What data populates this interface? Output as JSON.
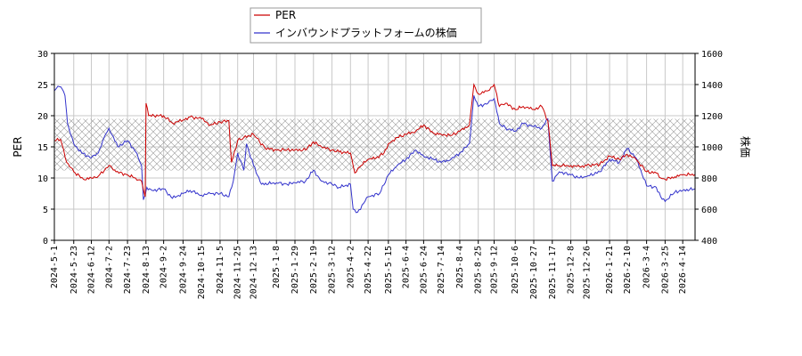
{
  "chart_data": {
    "type": "line",
    "title": "",
    "xlabel": "",
    "ylabel": "PER",
    "y2label": "株価",
    "ylim": [
      0,
      30
    ],
    "y2lim": [
      400,
      1600
    ],
    "yticks": [
      0,
      5,
      10,
      15,
      20,
      25,
      30
    ],
    "y2ticks": [
      400,
      600,
      800,
      1000,
      1200,
      1400,
      1600
    ],
    "band": {
      "from": 11.2,
      "to": 19.5,
      "pattern": "cross-hatch"
    },
    "grid": true,
    "legend_position": "top-center",
    "x_start": "2024-5-1",
    "x_end": "2026-4-28",
    "x_tick_labels": [
      "2024-5-1",
      "2024-5-23",
      "2024-6-12",
      "2024-7-2",
      "2024-7-23",
      "2024-8-13",
      "2024-9-2",
      "2024-9-24",
      "2024-10-15",
      "2024-11-5",
      "2024-11-25",
      "2024-12-13",
      "2025-1-8",
      "2025-1-29",
      "2025-2-19",
      "2025-3-12",
      "2025-4-2",
      "2025-4-22",
      "2025-5-15",
      "2025-6-4",
      "2025-6-24",
      "2025-7-14",
      "2025-8-4",
      "2025-8-25",
      "2025-9-12",
      "2025-10-6",
      "2025-10-27",
      "2025-11-17",
      "2025-12-8",
      "2025-12-26",
      "2026-1-21",
      "2026-2-10",
      "2026-3-4",
      "2026-3-25",
      "2026-4-14"
    ],
    "series": [
      {
        "name": "PER",
        "color": "#cc0000",
        "axis": "left",
        "points": [
          [
            "2024-5-1",
            16.0
          ],
          [
            "2024-5-8",
            16.2
          ],
          [
            "2024-5-15",
            12.5
          ],
          [
            "2024-5-23",
            11.0
          ],
          [
            "2024-6-3",
            9.8
          ],
          [
            "2024-6-12",
            10.0
          ],
          [
            "2024-6-20",
            10.3
          ],
          [
            "2024-7-2",
            12.0
          ],
          [
            "2024-7-10",
            11.0
          ],
          [
            "2024-7-23",
            10.5
          ],
          [
            "2024-8-1",
            10.0
          ],
          [
            "2024-8-8",
            9.5
          ],
          [
            "2024-8-12",
            7.0
          ],
          [
            "2024-8-13",
            22.0
          ],
          [
            "2024-8-16",
            20.0
          ],
          [
            "2024-9-2",
            20.0
          ],
          [
            "2024-9-12",
            18.8
          ],
          [
            "2024-9-24",
            19.3
          ],
          [
            "2024-10-2",
            19.8
          ],
          [
            "2024-10-15",
            19.5
          ],
          [
            "2024-10-25",
            18.5
          ],
          [
            "2024-11-5",
            19.0
          ],
          [
            "2024-11-15",
            19.2
          ],
          [
            "2024-11-18",
            12.5
          ],
          [
            "2024-11-25",
            16.0
          ],
          [
            "2024-12-2",
            16.5
          ],
          [
            "2024-12-13",
            17.0
          ],
          [
            "2024-12-20",
            15.8
          ],
          [
            "2024-12-26",
            14.8
          ],
          [
            "2025-1-8",
            14.5
          ],
          [
            "2025-1-20",
            14.5
          ],
          [
            "2025-1-29",
            14.5
          ],
          [
            "2025-2-10",
            14.5
          ],
          [
            "2025-2-19",
            15.8
          ],
          [
            "2025-2-28",
            15.0
          ],
          [
            "2025-3-12",
            14.5
          ],
          [
            "2025-3-20",
            14.2
          ],
          [
            "2025-4-2",
            14.0
          ],
          [
            "2025-4-7",
            10.8
          ],
          [
            "2025-4-14",
            12.0
          ],
          [
            "2025-4-22",
            13.0
          ],
          [
            "2025-5-1",
            13.2
          ],
          [
            "2025-5-10",
            14.0
          ],
          [
            "2025-5-15",
            15.5
          ],
          [
            "2025-5-25",
            16.5
          ],
          [
            "2025-6-4",
            17.0
          ],
          [
            "2025-6-15",
            17.5
          ],
          [
            "2025-6-24",
            18.5
          ],
          [
            "2025-7-5",
            17.2
          ],
          [
            "2025-7-14",
            17.0
          ],
          [
            "2025-7-25",
            16.8
          ],
          [
            "2025-8-4",
            17.5
          ],
          [
            "2025-8-15",
            18.5
          ],
          [
            "2025-8-20",
            25.0
          ],
          [
            "2025-8-25",
            23.5
          ],
          [
            "2025-9-5",
            24.0
          ],
          [
            "2025-9-12",
            25.0
          ],
          [
            "2025-9-18",
            21.5
          ],
          [
            "2025-9-25",
            22.0
          ],
          [
            "2025-10-6",
            21.0
          ],
          [
            "2025-10-15",
            21.5
          ],
          [
            "2025-10-27",
            21.0
          ],
          [
            "2025-11-5",
            21.5
          ],
          [
            "2025-11-12",
            19.2
          ],
          [
            "2025-11-17",
            12.0
          ],
          [
            "2025-11-25",
            12.0
          ],
          [
            "2025-12-8",
            12.0
          ],
          [
            "2025-12-18",
            11.8
          ],
          [
            "2025-12-26",
            12.0
          ],
          [
            "2026-1-10",
            12.2
          ],
          [
            "2026-1-21",
            13.5
          ],
          [
            "2026-2-1",
            13.0
          ],
          [
            "2026-2-10",
            13.8
          ],
          [
            "2026-2-20",
            13.0
          ],
          [
            "2026-3-4",
            11.0
          ],
          [
            "2026-3-15",
            10.8
          ],
          [
            "2026-3-20",
            10.0
          ],
          [
            "2026-3-25",
            9.8
          ],
          [
            "2026-4-5",
            10.2
          ],
          [
            "2026-4-14",
            10.5
          ],
          [
            "2026-4-28",
            10.6
          ]
        ]
      },
      {
        "name": "インバウンドプラットフォームの株価",
        "color": "#3333cc",
        "axis": "right",
        "points": [
          [
            "2024-5-1",
            1360
          ],
          [
            "2024-5-5",
            1390
          ],
          [
            "2024-5-10",
            1370
          ],
          [
            "2024-5-13",
            1330
          ],
          [
            "2024-5-16",
            1150
          ],
          [
            "2024-5-23",
            1020
          ],
          [
            "2024-6-1",
            960
          ],
          [
            "2024-6-12",
            930
          ],
          [
            "2024-6-20",
            960
          ],
          [
            "2024-6-28",
            1080
          ],
          [
            "2024-7-2",
            1120
          ],
          [
            "2024-7-12",
            1000
          ],
          [
            "2024-7-23",
            1040
          ],
          [
            "2024-8-1",
            970
          ],
          [
            "2024-8-8",
            880
          ],
          [
            "2024-8-10",
            660
          ],
          [
            "2024-8-14",
            740
          ],
          [
            "2024-8-20",
            720
          ],
          [
            "2024-9-2",
            730
          ],
          [
            "2024-9-12",
            670
          ],
          [
            "2024-9-24",
            700
          ],
          [
            "2024-10-2",
            720
          ],
          [
            "2024-10-15",
            690
          ],
          [
            "2024-10-25",
            700
          ],
          [
            "2024-11-5",
            700
          ],
          [
            "2024-11-15",
            680
          ],
          [
            "2024-11-20",
            780
          ],
          [
            "2024-11-25",
            960
          ],
          [
            "2024-12-2",
            850
          ],
          [
            "2024-12-5",
            1020
          ],
          [
            "2024-12-13",
            880
          ],
          [
            "2024-12-22",
            760
          ],
          [
            "2025-1-8",
            770
          ],
          [
            "2025-1-20",
            760
          ],
          [
            "2025-1-29",
            770
          ],
          [
            "2025-2-10",
            780
          ],
          [
            "2025-2-19",
            850
          ],
          [
            "2025-2-28",
            780
          ],
          [
            "2025-3-12",
            760
          ],
          [
            "2025-3-20",
            740
          ],
          [
            "2025-4-2",
            760
          ],
          [
            "2025-4-5",
            600
          ],
          [
            "2025-4-10",
            580
          ],
          [
            "2025-4-22",
            680
          ],
          [
            "2025-5-5",
            700
          ],
          [
            "2025-5-15",
            820
          ],
          [
            "2025-5-25",
            880
          ],
          [
            "2025-6-4",
            920
          ],
          [
            "2025-6-15",
            980
          ],
          [
            "2025-6-24",
            940
          ],
          [
            "2025-7-5",
            920
          ],
          [
            "2025-7-14",
            900
          ],
          [
            "2025-7-25",
            920
          ],
          [
            "2025-8-4",
            960
          ],
          [
            "2025-8-15",
            1020
          ],
          [
            "2025-8-20",
            1330
          ],
          [
            "2025-8-25",
            1260
          ],
          [
            "2025-9-5",
            1280
          ],
          [
            "2025-9-12",
            1310
          ],
          [
            "2025-9-18",
            1150
          ],
          [
            "2025-9-25",
            1120
          ],
          [
            "2025-10-6",
            1100
          ],
          [
            "2025-10-15",
            1150
          ],
          [
            "2025-10-27",
            1130
          ],
          [
            "2025-11-5",
            1120
          ],
          [
            "2025-11-12",
            1180
          ],
          [
            "2025-11-17",
            780
          ],
          [
            "2025-11-25",
            840
          ],
          [
            "2025-12-8",
            820
          ],
          [
            "2025-12-18",
            800
          ],
          [
            "2025-12-26",
            810
          ],
          [
            "2026-1-10",
            840
          ],
          [
            "2026-1-21",
            920
          ],
          [
            "2026-2-1",
            900
          ],
          [
            "2026-2-10",
            990
          ],
          [
            "2026-2-20",
            930
          ],
          [
            "2026-3-4",
            750
          ],
          [
            "2026-3-15",
            740
          ],
          [
            "2026-3-20",
            680
          ],
          [
            "2026-3-25",
            650
          ],
          [
            "2026-4-5",
            710
          ],
          [
            "2026-4-14",
            720
          ],
          [
            "2026-4-28",
            730
          ]
        ]
      }
    ]
  }
}
